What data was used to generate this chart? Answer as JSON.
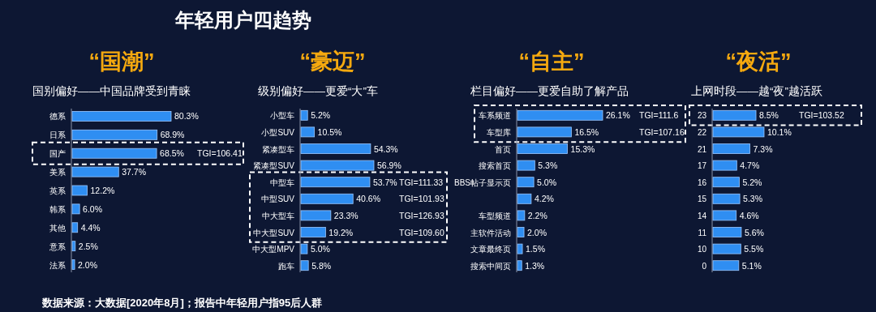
{
  "chart_data": [
    {
      "type": "other",
      "title": "年轻用户四趋势",
      "annotations": [
        "数据来源：大数据[2020年8月]；报告中年轻用户指95后人群"
      ]
    },
    {
      "type": "bar",
      "orientation": "horizontal",
      "title": "“国潮”",
      "subtitle": "国别偏好——中国品牌受到青睐",
      "categories": [
        "德系",
        "日系",
        "国产",
        "美系",
        "英系",
        "韩系",
        "其他",
        "意系",
        "法系"
      ],
      "values": [
        80.3,
        68.9,
        68.5,
        37.7,
        12.2,
        6.0,
        4.4,
        2.5,
        2.0
      ],
      "value_labels": [
        "80.3%",
        "68.9%",
        "68.5%",
        "37.7%",
        "12.2%",
        "6.0%",
        "4.4%",
        "2.5%",
        "2.0%"
      ],
      "color": "#2f8ef2",
      "annotations": [
        "TGI=106.41"
      ]
    },
    {
      "type": "bar",
      "orientation": "horizontal",
      "title": "“豪迈”",
      "subtitle": "级别偏好——更爱“大”车",
      "categories": [
        "小型车",
        "小型SUV",
        "紧凑型车",
        "紧凑型SUV",
        "中型车",
        "中型SUV",
        "中大型车",
        "中大型SUV",
        "中大型MPV",
        "跑车"
      ],
      "values": [
        5.2,
        10.5,
        54.3,
        56.9,
        53.7,
        40.6,
        23.3,
        19.2,
        5.0,
        5.8
      ],
      "value_labels": [
        "5.2%",
        "10.5%",
        "54.3%",
        "56.9%",
        "53.7%",
        "40.6%",
        "23.3%",
        "19.2%",
        "5.0%",
        "5.8%"
      ],
      "color": "#2f8ef2",
      "annotations": [
        "TGI=111.33",
        "TGI=101.93",
        "TGI=126.93",
        "TGI=109.60"
      ]
    },
    {
      "type": "bar",
      "orientation": "horizontal",
      "title": "“自主”",
      "subtitle": "栏目偏好——更爱自助了解产品",
      "categories": [
        "车系频道",
        "车型库",
        "首页",
        "搜索首页",
        "BBS帖子显示页",
        null,
        "车型频道",
        "主软件活动",
        "文章最终页",
        "搜索中间页"
      ],
      "values": [
        26.1,
        16.5,
        15.3,
        5.3,
        5.0,
        4.2,
        2.2,
        2.0,
        1.5,
        1.3
      ],
      "value_labels": [
        "26.1%",
        "16.5%",
        "15.3%",
        "5.3%",
        "5.0%",
        "4.2%",
        "2.2%",
        "2.0%",
        "1.5%",
        "1.3%"
      ],
      "color": "#2f8ef2",
      "annotations": [
        "TGI=111.6",
        "TGI=107.16"
      ]
    },
    {
      "type": "bar",
      "orientation": "horizontal",
      "title": "“夜活”",
      "subtitle": "上网时段——越“夜”越活跃",
      "categories": [
        "23",
        "22",
        "21",
        "17",
        "16",
        "15",
        "14",
        "11",
        "10",
        "0"
      ],
      "values": [
        8.5,
        10.1,
        7.3,
        4.7,
        5.2,
        5.3,
        4.6,
        5.6,
        5.5,
        5.1
      ],
      "value_labels": [
        "8.5%",
        "10.1%",
        "7.3%",
        "4.7%",
        "5.2%",
        "5.3%",
        "4.6%",
        "5.6%",
        "5.5%",
        "5.1%"
      ],
      "color": "#2f8ef2",
      "annotations": [
        "TGI=103.52"
      ]
    }
  ]
}
